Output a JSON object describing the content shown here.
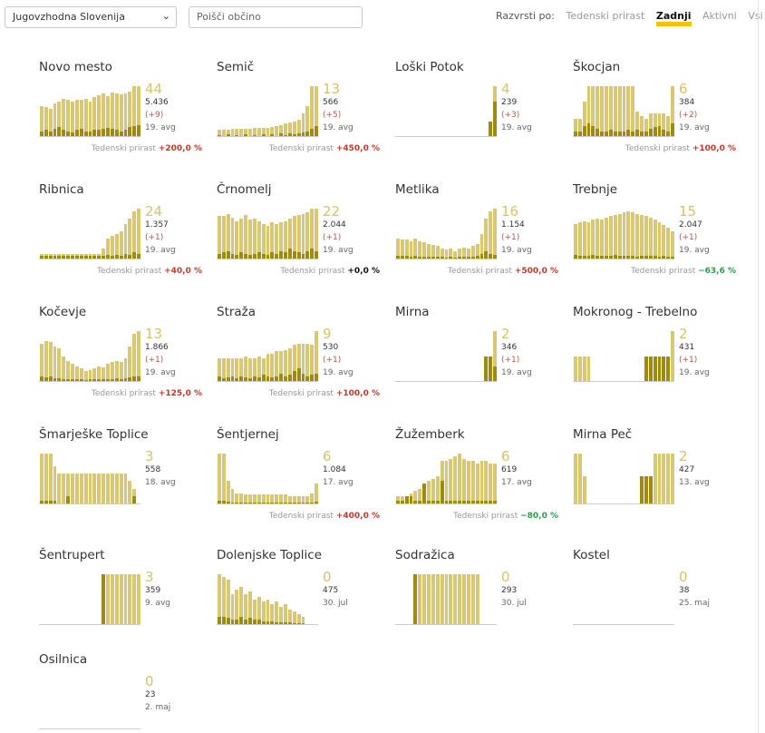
{
  "filter": {
    "region": "Jugovzhodna Slovenija",
    "search_placeholder": "Poišči občino"
  },
  "sort": {
    "label": "Razvrsti po:",
    "options": [
      "Tedenski prirast",
      "Zadnji",
      "Aktivni",
      "Vsi"
    ],
    "active": "Zadnji"
  },
  "growth_label": "Tedenski prirast",
  "colors": {
    "bar": "#d8c873",
    "bar_new": "#9d8b0f",
    "positive": "#c0392b",
    "negative": "#27a04a"
  },
  "municipalities": [
    {
      "name": "Novo mesto",
      "active": "44",
      "total": "5.436",
      "delta": "(+9)",
      "date": "19. avg",
      "growth": "+200,0 %",
      "bars": [
        0.6,
        0.58,
        0.55,
        0.65,
        0.7,
        0.75,
        0.72,
        0.7,
        0.73,
        0.72,
        0.75,
        0.7,
        0.78,
        0.82,
        0.85,
        0.8,
        0.88,
        0.85,
        0.83,
        0.86,
        0.9,
        1.0,
        1.0
      ],
      "bars_new": [
        0.1,
        0.12,
        0.1,
        0.15,
        0.18,
        0.12,
        0.1,
        0.08,
        0.12,
        0.14,
        0.1,
        0.1,
        0.13,
        0.12,
        0.15,
        0.16,
        0.14,
        0.12,
        0.1,
        0.12,
        0.18,
        0.2,
        0.22
      ]
    },
    {
      "name": "Semič",
      "active": "13",
      "total": "566",
      "delta": "(+5)",
      "date": "19. avg",
      "growth": "+450,0 %",
      "bars": [
        0.12,
        0.12,
        0.12,
        0.14,
        0.14,
        0.14,
        0.15,
        0.15,
        0.16,
        0.16,
        0.17,
        0.17,
        0.18,
        0.2,
        0.22,
        0.25,
        0.28,
        0.3,
        0.32,
        0.45,
        0.6,
        1.0,
        1.0
      ],
      "bars_new": [
        0.02,
        0,
        0.03,
        0,
        0.02,
        0,
        0.03,
        0,
        0.02,
        0,
        0.03,
        0,
        0.04,
        0,
        0.05,
        0.02,
        0.06,
        0.03,
        0.05,
        0.08,
        0.1,
        0.15,
        0.2
      ]
    },
    {
      "name": "Loški Potok",
      "active": "4",
      "total": "239",
      "delta": "(+3)",
      "date": "19. avg",
      "growth": "",
      "bars": [
        0,
        0,
        0,
        0,
        0,
        0,
        0,
        0,
        0,
        0,
        0,
        0,
        0,
        0,
        0,
        0,
        0,
        0,
        0,
        0,
        0,
        0.3,
        1.0
      ],
      "bars_new": [
        0,
        0,
        0,
        0,
        0,
        0,
        0,
        0,
        0,
        0,
        0,
        0,
        0,
        0,
        0,
        0,
        0,
        0,
        0,
        0,
        0,
        0.3,
        0.7
      ]
    },
    {
      "name": "Škocjan",
      "active": "6",
      "total": "384",
      "delta": "(+2)",
      "date": "19. avg",
      "growth": "+100,0 %",
      "bars": [
        0.35,
        0.35,
        0.7,
        1.0,
        1.0,
        1.0,
        1.0,
        1.0,
        1.0,
        1.0,
        1.0,
        1.0,
        1.0,
        1.0,
        0.5,
        0.4,
        0.35,
        0.45,
        0.45,
        0.45,
        0.45,
        0.4,
        1.0
      ],
      "bars_new": [
        0.1,
        0.1,
        0.2,
        0.25,
        0.2,
        0.15,
        0.1,
        0.1,
        0.12,
        0.1,
        0.1,
        0.1,
        0.12,
        0.1,
        0.12,
        0.1,
        0.1,
        0.15,
        0.18,
        0.2,
        0.12,
        0.1,
        0.25
      ]
    },
    {
      "name": "Ribnica",
      "active": "24",
      "total": "1.357",
      "delta": "(+1)",
      "date": "19. avg",
      "growth": "+40,0 %",
      "bars": [
        0.1,
        0.1,
        0.1,
        0.1,
        0.1,
        0.1,
        0.1,
        0.1,
        0.1,
        0.1,
        0.1,
        0.1,
        0.1,
        0.1,
        0.2,
        0.4,
        0.45,
        0.5,
        0.55,
        0.7,
        0.8,
        0.95,
        1.0
      ],
      "bars_new": [
        0.05,
        0.05,
        0.05,
        0.05,
        0.05,
        0.05,
        0.05,
        0.05,
        0.05,
        0.05,
        0.05,
        0.05,
        0.05,
        0.05,
        0.05,
        0.08,
        0.06,
        0.08,
        0.06,
        0.1,
        0.08,
        0.12,
        0.1
      ]
    },
    {
      "name": "Črnomelj",
      "active": "22",
      "total": "2.044",
      "delta": "(+1)",
      "date": "19. avg",
      "growth": "+0,0 %",
      "bars": [
        0.85,
        0.85,
        0.9,
        0.82,
        0.75,
        0.8,
        0.88,
        0.78,
        0.8,
        0.75,
        0.7,
        0.65,
        0.72,
        0.7,
        0.72,
        0.75,
        0.8,
        0.85,
        0.88,
        0.9,
        0.92,
        1.0,
        1.0
      ],
      "bars_new": [
        0.1,
        0.12,
        0.15,
        0.1,
        0.08,
        0.12,
        0.1,
        0.08,
        0.1,
        0.12,
        0.1,
        0.08,
        0.12,
        0.1,
        0.15,
        0.12,
        0.2,
        0.15,
        0.12,
        0.1,
        0.15,
        0.2,
        0.15
      ]
    },
    {
      "name": "Metlika",
      "active": "16",
      "total": "1.154",
      "delta": "(+1)",
      "date": "19. avg",
      "growth": "+500,0 %",
      "bars": [
        0.4,
        0.38,
        0.38,
        0.35,
        0.4,
        0.35,
        0.32,
        0.3,
        0.28,
        0.25,
        0.2,
        0.18,
        0.2,
        0.15,
        0.2,
        0.22,
        0.2,
        0.25,
        0.3,
        0.5,
        0.8,
        0.95,
        1.0
      ],
      "bars_new": [
        0.05,
        0.05,
        0.05,
        0.04,
        0.05,
        0.04,
        0.04,
        0.04,
        0.03,
        0.03,
        0.03,
        0.02,
        0.03,
        0.02,
        0.03,
        0.04,
        0.03,
        0.04,
        0.05,
        0.1,
        0.15,
        0.1,
        0.08
      ]
    },
    {
      "name": "Trebnje",
      "active": "15",
      "total": "2.047",
      "delta": "(+1)",
      "date": "19. avg",
      "growth": "−63,6 %",
      "bars": [
        0.7,
        0.72,
        0.75,
        0.72,
        0.78,
        0.8,
        0.78,
        0.82,
        0.85,
        0.88,
        0.9,
        0.92,
        0.95,
        0.92,
        0.9,
        0.88,
        0.85,
        0.82,
        0.78,
        0.72,
        0.68,
        0.62,
        0.55
      ],
      "bars_new": [
        0.08,
        0.06,
        0.05,
        0.06,
        0.07,
        0.05,
        0.06,
        0.05,
        0.06,
        0.07,
        0.05,
        0.06,
        0.05,
        0.06,
        0.04,
        0.05,
        0.05,
        0.06,
        0.05,
        0.04,
        0.05,
        0.04,
        0.03
      ]
    },
    {
      "name": "Kočevje",
      "active": "13",
      "total": "1.866",
      "delta": "(+1)",
      "date": "19. avg",
      "growth": "+125,0 %",
      "bars": [
        0.75,
        0.8,
        0.78,
        0.7,
        0.65,
        0.5,
        0.4,
        0.35,
        0.3,
        0.25,
        0.2,
        0.22,
        0.25,
        0.3,
        0.28,
        0.35,
        0.38,
        0.4,
        0.38,
        0.45,
        0.7,
        0.95,
        1.0
      ],
      "bars_new": [
        0.1,
        0.08,
        0.1,
        0.06,
        0.05,
        0.04,
        0.04,
        0.03,
        0.03,
        0.03,
        0.02,
        0.03,
        0.03,
        0.04,
        0.03,
        0.04,
        0.04,
        0.05,
        0.04,
        0.06,
        0.08,
        0.1,
        0.1
      ]
    },
    {
      "name": "Straža",
      "active": "9",
      "total": "530",
      "delta": "(+1)",
      "date": "19. avg",
      "growth": "+100,0 %",
      "bars": [
        0.45,
        0.45,
        0.45,
        0.45,
        0.45,
        0.45,
        0.5,
        0.45,
        0.45,
        0.5,
        0.45,
        0.55,
        0.55,
        0.6,
        0.6,
        0.62,
        0.65,
        0.72,
        0.75,
        0.75,
        0.75,
        0.72,
        1.0
      ],
      "bars_new": [
        0.1,
        0.05,
        0.08,
        0.1,
        0.05,
        0.1,
        0.08,
        0.05,
        0.1,
        0.08,
        0.12,
        0.1,
        0.08,
        0.1,
        0.15,
        0.1,
        0.12,
        0.2,
        0.25,
        0.15,
        0.1,
        0.12,
        0.15
      ]
    },
    {
      "name": "Mirna",
      "active": "2",
      "total": "346",
      "delta": "(+1)",
      "date": "19. avg",
      "growth": "",
      "bars": [
        0,
        0,
        0,
        0,
        0,
        0,
        0,
        0,
        0,
        0,
        0,
        0,
        0,
        0,
        0,
        0,
        0,
        0,
        0,
        0,
        0.5,
        0.5,
        1.0
      ],
      "bars_new": [
        0,
        0,
        0,
        0,
        0,
        0,
        0,
        0,
        0,
        0,
        0,
        0,
        0,
        0,
        0,
        0,
        0,
        0,
        0,
        0,
        0.5,
        0.5,
        0.3
      ]
    },
    {
      "name": "Mokronog - Trebelno",
      "active": "2",
      "total": "431",
      "delta": "(+1)",
      "date": "19. avg",
      "growth": "",
      "bars": [
        0.5,
        0.5,
        0.5,
        0.5,
        0,
        0,
        0,
        0,
        0,
        0,
        0,
        0,
        0,
        0,
        0,
        0,
        0.5,
        0.5,
        0.5,
        0.5,
        0.5,
        0.5,
        1.0
      ],
      "bars_new": [
        0,
        0,
        0,
        0,
        0,
        0,
        0,
        0,
        0,
        0,
        0,
        0,
        0,
        0,
        0,
        0,
        0.5,
        0.5,
        0.5,
        0.5,
        0.5,
        0.5,
        0
      ]
    },
    {
      "name": "Šmarješke Toplice",
      "active": "3",
      "total": "558",
      "delta": "",
      "date": "18. avg",
      "growth": "",
      "bars": [
        1.0,
        1.0,
        1.0,
        0.75,
        0.6,
        0.6,
        0.6,
        0.6,
        0.6,
        0.6,
        0.6,
        0.6,
        0.6,
        0.6,
        0.6,
        0.6,
        0.6,
        0.6,
        0.6,
        0.6,
        0.45,
        0.3,
        0
      ],
      "bars_new": [
        0.05,
        0.05,
        0.05,
        0.05,
        0,
        0,
        0.15,
        0,
        0,
        0,
        0,
        0,
        0,
        0,
        0,
        0,
        0,
        0,
        0,
        0,
        0,
        0.15,
        0
      ]
    },
    {
      "name": "Šentjernej",
      "active": "6",
      "total": "1.084",
      "delta": "",
      "date": "17. avg",
      "growth": "+400,0 %",
      "bars": [
        1.0,
        1.0,
        0.45,
        0.3,
        0.2,
        0.2,
        0.18,
        0.18,
        0.18,
        0.18,
        0.18,
        0.18,
        0.18,
        0.18,
        0.18,
        0.18,
        0.15,
        0.15,
        0.15,
        0.15,
        0.15,
        0.2,
        0.4
      ],
      "bars_new": [
        0.05,
        0.05,
        0.03,
        0.02,
        0.02,
        0.02,
        0.02,
        0.02,
        0.02,
        0.02,
        0.02,
        0.02,
        0.02,
        0.02,
        0.02,
        0.02,
        0.02,
        0.02,
        0.02,
        0.02,
        0.02,
        0.02,
        0.03
      ]
    },
    {
      "name": "Žužemberk",
      "active": "6",
      "total": "619",
      "delta": "",
      "date": "17. avg",
      "growth": "−80,0 %",
      "bars": [
        0.15,
        0.15,
        0.15,
        0.2,
        0.25,
        0.3,
        0.4,
        0.45,
        0.5,
        0.55,
        0.85,
        0.85,
        0.9,
        0.95,
        1.0,
        0.9,
        0.85,
        0.85,
        0.8,
        0.85,
        0.85,
        0.8,
        0.8
      ],
      "bars_new": [
        0.05,
        0.05,
        0.15,
        0.15,
        0.05,
        0.05,
        0.4,
        0.05,
        0.05,
        0.05,
        0.45,
        0.05,
        0.05,
        0.05,
        0.05,
        0.05,
        0.05,
        0.05,
        0.05,
        0.05,
        0.05,
        0.05,
        0.05
      ]
    },
    {
      "name": "Mirna Peč",
      "active": "2",
      "total": "427",
      "delta": "",
      "date": "13. avg",
      "growth": "",
      "bars": [
        1.0,
        1.0,
        0.55,
        0,
        0,
        0,
        0,
        0,
        0,
        0,
        0,
        0,
        0,
        0,
        0,
        0.55,
        0.55,
        0.55,
        1.0,
        1.0,
        1.0,
        1.0,
        1.0
      ],
      "bars_new": [
        0,
        0,
        0,
        0,
        0,
        0,
        0,
        0,
        0,
        0,
        0,
        0,
        0,
        0,
        0,
        0.55,
        0.55,
        0.55,
        0,
        0,
        0,
        0,
        0
      ]
    },
    {
      "name": "Šentrupert",
      "active": "3",
      "total": "359",
      "delta": "",
      "date": "9. avg",
      "growth": "",
      "bars": [
        0,
        0,
        0,
        0,
        0,
        0,
        0,
        0,
        0,
        0,
        0,
        0,
        0,
        0,
        1.0,
        1.0,
        1.0,
        1.0,
        1.0,
        1.0,
        1.0,
        1.0,
        1.0
      ],
      "bars_new": [
        0,
        0,
        0,
        0,
        0,
        0,
        0,
        0,
        0,
        0,
        0,
        0,
        0,
        0,
        1.0,
        0,
        0,
        0,
        0,
        0,
        0,
        0,
        0
      ]
    },
    {
      "name": "Dolenjske Toplice",
      "active": "0",
      "total": "475",
      "delta": "",
      "date": "30. jul",
      "growth": "",
      "bars": [
        1.0,
        0.95,
        0.9,
        0.6,
        0.7,
        0.75,
        0.6,
        0.65,
        0.5,
        0.55,
        0.45,
        0.5,
        0.4,
        0.45,
        0.35,
        0.4,
        0.3,
        0.25,
        0.2,
        0.15,
        0,
        0,
        0
      ],
      "bars_new": [
        0.15,
        0.15,
        0.12,
        0.1,
        0.1,
        0.15,
        0.1,
        0.12,
        0.1,
        0.1,
        0.05,
        0.05,
        0.05,
        0.03,
        0.03,
        0.03,
        0.03,
        0.02,
        0.02,
        0.02,
        0,
        0,
        0
      ]
    },
    {
      "name": "Sodražica",
      "active": "0",
      "total": "293",
      "delta": "",
      "date": "30. jul",
      "growth": "",
      "bars": [
        0,
        0,
        0,
        0,
        1.0,
        1.0,
        1.0,
        1.0,
        1.0,
        1.0,
        1.0,
        1.0,
        1.0,
        1.0,
        1.0,
        1.0,
        1.0,
        1.0,
        1.0,
        0,
        0,
        0,
        0
      ],
      "bars_new": [
        0,
        0,
        0,
        0,
        1.0,
        0,
        0,
        0,
        0,
        0,
        0,
        0,
        0,
        0,
        0,
        0,
        0,
        0,
        0,
        0,
        0,
        0,
        0
      ]
    },
    {
      "name": "Kostel",
      "active": "0",
      "total": "38",
      "delta": "",
      "date": "25. maj",
      "growth": "",
      "bars": [],
      "bars_new": []
    },
    {
      "name": "Osilnica",
      "active": "0",
      "total": "23",
      "delta": "",
      "date": "2. maj",
      "growth": "",
      "bars": [],
      "bars_new": []
    }
  ]
}
